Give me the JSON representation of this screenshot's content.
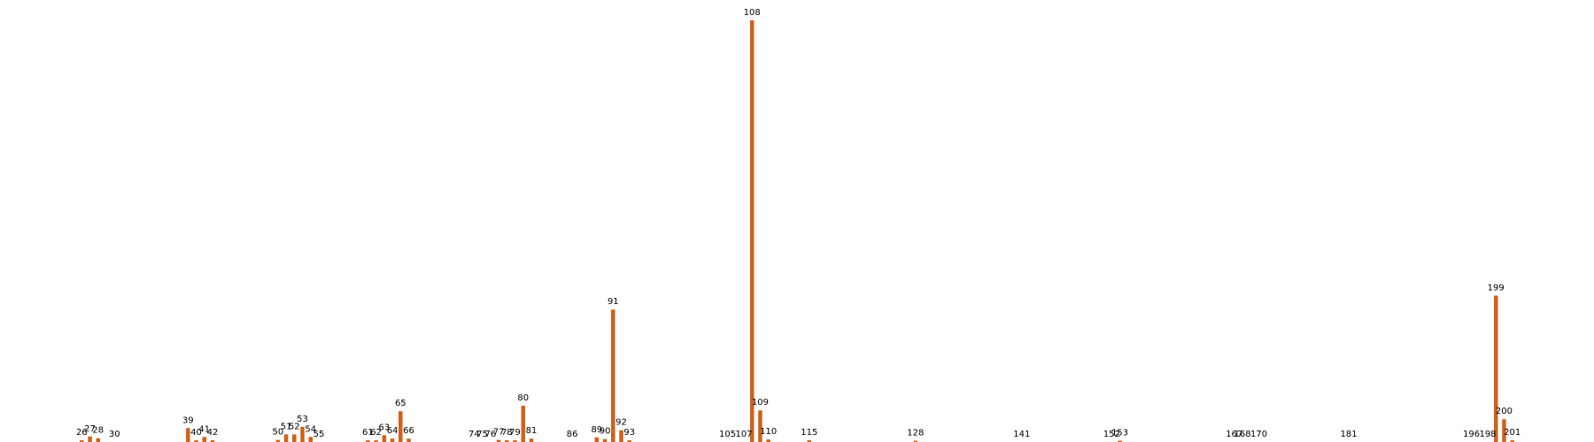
{
  "chart_data": {
    "type": "bar",
    "title": "",
    "xlabel": "",
    "ylabel": "",
    "grid": false,
    "axes_visible": false,
    "bar_color": "#d2601a",
    "xlim": [
      16,
      211
    ],
    "ylim": [
      0,
      100
    ],
    "x": [
      26,
      27,
      28,
      30,
      39,
      40,
      41,
      42,
      50,
      51,
      52,
      53,
      54,
      55,
      61,
      62,
      63,
      64,
      65,
      66,
      74,
      75,
      76,
      77,
      78,
      79,
      80,
      81,
      86,
      89,
      90,
      91,
      92,
      93,
      105,
      107,
      108,
      109,
      110,
      115,
      128,
      141,
      152,
      153,
      167,
      168,
      170,
      181,
      196,
      198,
      199,
      200,
      201
    ],
    "values": [
      0.4,
      1.3,
      0.9,
      0,
      3.3,
      0.4,
      1.2,
      0.4,
      0.5,
      1.8,
      1.8,
      3.6,
      1.2,
      0,
      0.4,
      0.4,
      1.6,
      0.8,
      7.3,
      0.8,
      0,
      0,
      0,
      0.5,
      0.4,
      0.4,
      8.6,
      0.8,
      0,
      1.1,
      0.7,
      31.4,
      2.8,
      0.4,
      0,
      0,
      100,
      7.5,
      0.6,
      0.4,
      0.3,
      0,
      0,
      0.3,
      0,
      0,
      0,
      0,
      0,
      0,
      34.7,
      5.4,
      0.4
    ]
  }
}
